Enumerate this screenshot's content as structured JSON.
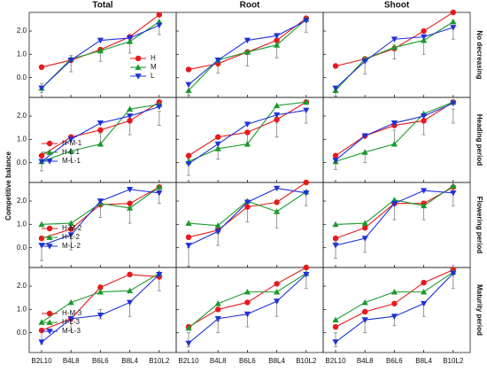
{
  "labels": {
    "y_label": "Competitive balance",
    "columns": [
      "Total",
      "Root",
      "Shoot"
    ],
    "rows": [
      "No decreasing",
      "Heading period",
      "Flowering period",
      "Maturity period"
    ]
  },
  "axes": {
    "categories": [
      "B2L10",
      "B4L8",
      "B6L6",
      "B8L4",
      "B10L2"
    ],
    "ylim": [
      -0.85,
      2.8
    ],
    "yticks": [
      {
        "value": 0,
        "label": "0.0"
      },
      {
        "value": 1,
        "label": "1.0"
      },
      {
        "value": 2,
        "label": "2.0"
      }
    ]
  },
  "colors": [
    "#e8191b",
    "#1a9a2c",
    "#1f32d9"
  ],
  "errorbar_color": "#8c8c8c",
  "chart_data": [
    {
      "type": "line",
      "legend": "lower right",
      "series": [
        {
          "name": "H",
          "values": [
            0.45,
            0.75,
            1.2,
            1.75,
            2.7
          ]
        },
        {
          "name": "M",
          "values": [
            -0.45,
            0.8,
            1.15,
            1.55,
            2.4
          ]
        },
        {
          "name": "L",
          "values": [
            -0.45,
            0.75,
            1.6,
            1.7,
            2.25
          ]
        }
      ],
      "errorbars": {
        "values": [
          -0.45,
          0.6,
          1.0,
          1.4,
          2.1
        ],
        "errors": [
          0.2,
          0.35,
          0.3,
          0.35,
          0.25
        ]
      }
    },
    {
      "type": "line",
      "series": [
        {
          "values": [
            0.35,
            0.6,
            1.1,
            1.6,
            2.55
          ]
        },
        {
          "values": [
            -0.55,
            0.75,
            1.1,
            1.4,
            2.5
          ]
        },
        {
          "values": [
            -0.3,
            0.75,
            1.6,
            1.8,
            2.45
          ]
        }
      ],
      "errorbars": {
        "values": [
          -0.5,
          0.5,
          0.8,
          1.2,
          2.2
        ],
        "errors": [
          0.25,
          0.3,
          0.3,
          0.35,
          0.25
        ]
      }
    },
    {
      "type": "line",
      "series": [
        {
          "values": [
            0.5,
            0.8,
            1.25,
            2.0,
            2.8
          ]
        },
        {
          "values": [
            -0.55,
            0.8,
            1.3,
            1.6,
            2.4
          ]
        },
        {
          "values": [
            -0.45,
            0.7,
            1.65,
            1.75,
            2.15
          ]
        }
      ],
      "errorbars": {
        "values": [
          -0.6,
          0.5,
          1.1,
          1.3,
          1.95
        ],
        "errors": [
          0.2,
          0.35,
          0.3,
          0.3,
          0.3
        ]
      }
    },
    {
      "type": "line",
      "legend": "lower left",
      "series": [
        {
          "name": "H-M-1",
          "values": [
            0.3,
            1.1,
            1.4,
            1.8,
            2.6
          ]
        },
        {
          "name": "H-L-1",
          "values": [
            0.05,
            0.5,
            0.8,
            2.3,
            2.5
          ]
        },
        {
          "name": "M-L-1",
          "values": [
            0.05,
            1.0,
            1.7,
            2.0,
            2.4
          ]
        }
      ],
      "errorbars": {
        "values": [
          0.0,
          0.3,
          1.0,
          1.5,
          1.9
        ],
        "errors": [
          0.35,
          0.2,
          0.25,
          0.3,
          0.3
        ]
      }
    },
    {
      "type": "line",
      "series": [
        {
          "values": [
            0.3,
            1.1,
            1.3,
            1.85,
            2.6
          ]
        },
        {
          "values": [
            0.05,
            0.6,
            0.8,
            2.45,
            2.6
          ]
        },
        {
          "values": [
            -0.05,
            0.8,
            1.65,
            2.05,
            2.25
          ]
        }
      ],
      "errorbars": {
        "values": [
          -0.2,
          0.4,
          1.0,
          1.4,
          2.0
        ],
        "errors": [
          0.35,
          0.25,
          0.3,
          0.3,
          0.3
        ]
      }
    },
    {
      "type": "line",
      "series": [
        {
          "values": [
            0.3,
            1.15,
            1.6,
            1.8,
            2.6
          ]
        },
        {
          "values": [
            0.05,
            0.45,
            0.8,
            2.1,
            2.6
          ]
        },
        {
          "values": [
            0.1,
            1.15,
            1.7,
            2.0,
            2.55
          ]
        }
      ],
      "errorbars": {
        "values": [
          0.0,
          0.2,
          1.1,
          1.5,
          2.0
        ],
        "errors": [
          0.3,
          0.2,
          0.3,
          0.3,
          0.3
        ]
      }
    },
    {
      "type": "line",
      "legend": "lower left",
      "series": [
        {
          "name": "H-M-2",
          "values": [
            0.4,
            0.8,
            1.85,
            1.9,
            2.6
          ]
        },
        {
          "name": "H-L-2",
          "values": [
            1.0,
            1.05,
            1.9,
            1.7,
            2.6
          ]
        },
        {
          "name": "M-L-2",
          "values": [
            0.1,
            0.55,
            2.0,
            2.5,
            2.35
          ]
        }
      ],
      "errorbars": {
        "values": [
          -0.2,
          0.2,
          1.6,
          1.4,
          2.2
        ],
        "errors": [
          0.35,
          0.3,
          0.3,
          0.35,
          0.3
        ]
      }
    },
    {
      "type": "line",
      "series": [
        {
          "values": [
            0.45,
            0.75,
            1.75,
            1.95,
            2.8
          ]
        },
        {
          "values": [
            1.05,
            0.95,
            2.0,
            1.55,
            2.4
          ]
        },
        {
          "values": [
            0.1,
            0.7,
            1.95,
            2.55,
            2.35
          ]
        }
      ],
      "errorbars": {
        "values": [
          -0.4,
          0.35,
          1.4,
          1.2,
          2.1
        ],
        "errors": [
          0.4,
          0.25,
          0.3,
          0.35,
          0.3
        ]
      }
    },
    {
      "type": "line",
      "series": [
        {
          "values": [
            0.4,
            0.85,
            1.9,
            1.9,
            2.6
          ]
        },
        {
          "values": [
            1.0,
            1.05,
            2.05,
            1.8,
            2.65
          ]
        },
        {
          "values": [
            0.1,
            0.4,
            1.9,
            2.45,
            2.35
          ]
        }
      ],
      "errorbars": {
        "values": [
          -0.1,
          0.1,
          1.5,
          1.5,
          2.1
        ],
        "errors": [
          0.35,
          0.3,
          0.3,
          0.3,
          0.3
        ]
      }
    },
    {
      "type": "line",
      "legend": "lower left",
      "series": [
        {
          "name": "H-M-3",
          "values": [
            0.1,
            0.6,
            1.95,
            2.5,
            2.4
          ]
        },
        {
          "name": "H-L-3",
          "values": [
            0.45,
            1.3,
            1.75,
            1.8,
            2.55
          ]
        },
        {
          "name": "M-L-3",
          "values": [
            -0.4,
            0.6,
            0.75,
            1.3,
            2.5
          ]
        }
      ],
      "errorbars": {
        "values": [
          -0.2,
          0.3,
          0.8,
          1.0,
          2.1
        ],
        "errors": [
          0.3,
          0.2,
          0.2,
          0.3,
          0.3
        ]
      }
    },
    {
      "type": "line",
      "series": [
        {
          "values": [
            0.25,
            1.0,
            1.3,
            2.1,
            2.8
          ]
        },
        {
          "values": [
            0.2,
            1.25,
            1.75,
            1.75,
            2.55
          ]
        },
        {
          "values": [
            -0.45,
            0.6,
            0.8,
            1.35,
            2.5
          ]
        }
      ],
      "errorbars": {
        "values": [
          -0.3,
          0.25,
          0.5,
          1.0,
          2.2
        ],
        "errors": [
          0.3,
          0.25,
          0.25,
          0.3,
          0.3
        ]
      }
    },
    {
      "type": "line",
      "series": [
        {
          "values": [
            0.25,
            0.9,
            1.25,
            2.15,
            2.7
          ]
        },
        {
          "values": [
            0.55,
            1.3,
            1.75,
            1.75,
            2.6
          ]
        },
        {
          "values": [
            -0.4,
            0.55,
            0.7,
            1.25,
            2.55
          ]
        }
      ],
      "errorbars": {
        "values": [
          -0.3,
          0.25,
          0.55,
          1.0,
          2.2
        ],
        "errors": [
          0.3,
          0.25,
          0.25,
          0.3,
          0.3
        ]
      }
    }
  ]
}
